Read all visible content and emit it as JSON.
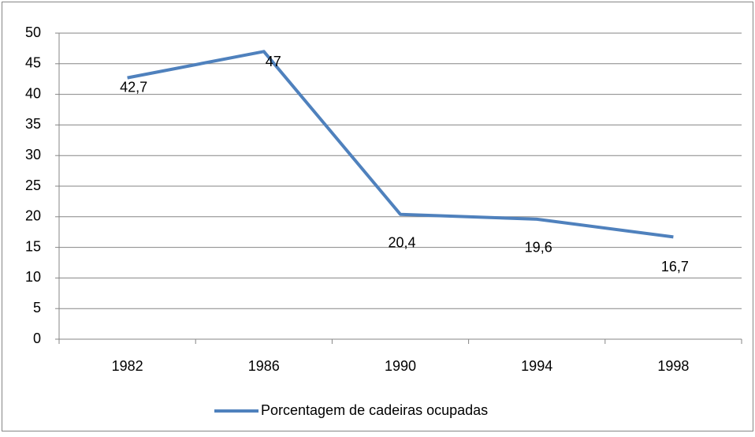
{
  "chart_data": {
    "type": "line",
    "categories": [
      "1982",
      "1986",
      "1990",
      "1994",
      "1998"
    ],
    "series": [
      {
        "name": "Porcentagem de cadeiras ocupadas",
        "color": "#4f81bd",
        "values": [
          42.7,
          47,
          20.4,
          19.6,
          16.7
        ],
        "value_labels": [
          "42,7",
          "47",
          "20,4",
          "19,6",
          "16,7"
        ]
      }
    ],
    "ylim": [
      0,
      50
    ],
    "yticks": [
      0,
      5,
      10,
      15,
      20,
      25,
      30,
      35,
      40,
      45,
      50
    ],
    "grid": true,
    "legend": "bottom"
  }
}
